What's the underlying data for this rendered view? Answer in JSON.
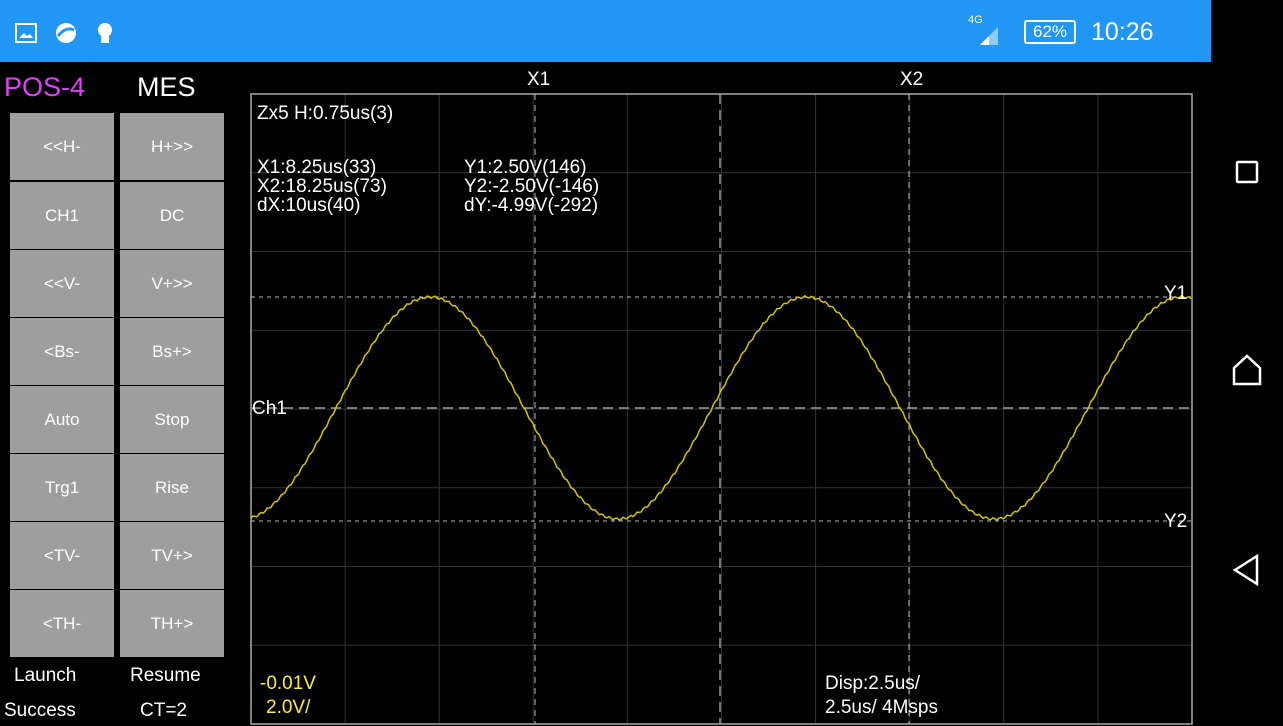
{
  "status_bar": {
    "network": "4G",
    "battery": "62%",
    "time": "10:26",
    "icons": [
      "gallery-icon",
      "sync-app-icon",
      "nfc-off-icon",
      "signal-icon",
      "battery-icon"
    ]
  },
  "nav": {
    "icons": [
      "recent-apps-icon",
      "home-icon",
      "back-icon"
    ]
  },
  "panel": {
    "pos_label": "POS-4",
    "mes_label": "MES",
    "buttons": [
      [
        "<<H-",
        "H+>>"
      ],
      [
        "CH1",
        "DC"
      ],
      [
        "<<V-",
        "V+>>"
      ],
      [
        "<Bs-",
        "Bs+>"
      ],
      [
        "Auto",
        "Stop"
      ],
      [
        "Trg1",
        "Rise"
      ],
      [
        "<TV-",
        "TV+>"
      ],
      [
        "<TH-",
        "TH+>"
      ]
    ],
    "footer": {
      "launch": "Launch",
      "success": "Success",
      "resume": "Resume",
      "ct": "CT=2"
    }
  },
  "scope": {
    "cursor_x1": "X1",
    "cursor_x2": "X2",
    "cursor_y1": "Y1",
    "cursor_y2": "Y2",
    "channel": "Ch1",
    "zoom": "Zx5 H:0.75us(3)",
    "x1": "X1:8.25us(33)",
    "x2": "X2:18.25us(73)",
    "dx": "dX:10us(40)",
    "y1": "Y1:2.50V(146)",
    "y2": "Y2:-2.50V(-146)",
    "dy": "dY:-4.99V(-292)",
    "offset": "-0.01V",
    "vdiv": "2.0V/",
    "disp": "Disp:2.5us/",
    "rate": "2.5us/ 4Msps",
    "colors": {
      "trace": "#d4c400",
      "channel_label": "#ffeb3b",
      "pos_label": "#e040fb"
    }
  }
}
